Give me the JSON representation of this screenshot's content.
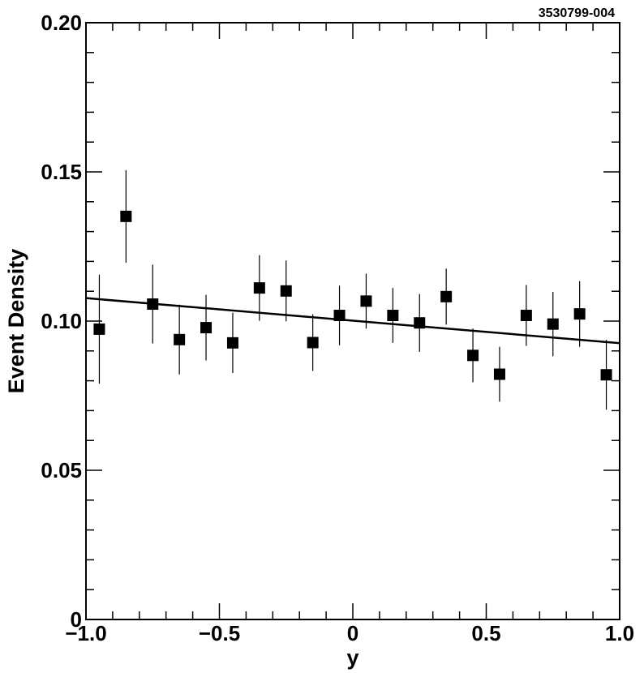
{
  "figure_id": "3530799-004",
  "chart_data": {
    "type": "scatter",
    "xlabel": "y",
    "ylabel": "Event  Density",
    "xlim": [
      -1.0,
      1.0
    ],
    "ylim": [
      0,
      0.2
    ],
    "x_ticks": [
      -1.0,
      -0.5,
      0,
      0.5,
      1.0
    ],
    "x_tick_labels": [
      "−1.0",
      "−0.5",
      "0",
      "0.5",
      "1.0"
    ],
    "y_ticks": [
      0,
      0.05,
      0.1,
      0.15,
      0.2
    ],
    "y_tick_labels": [
      "0",
      "0.05",
      "0.10",
      "0.15",
      "0.20"
    ],
    "grid": false,
    "x_minor_step": 0.1,
    "y_minor_step": 0.01,
    "series": [
      {
        "marker": "square",
        "x": [
          -0.95,
          -0.85,
          -0.75,
          -0.65,
          -0.55,
          -0.45,
          -0.35,
          -0.25,
          -0.15,
          -0.05,
          0.05,
          0.15,
          0.25,
          0.35,
          0.45,
          0.55,
          0.65,
          0.75,
          0.85,
          0.95
        ],
        "y": [
          0.0973,
          0.1351,
          0.1057,
          0.0938,
          0.0978,
          0.0927,
          0.1111,
          0.1101,
          0.0928,
          0.1019,
          0.1067,
          0.1019,
          0.0994,
          0.1082,
          0.0885,
          0.0822,
          0.1019,
          0.099,
          0.1024,
          0.082
        ],
        "y_err": [
          0.0183,
          0.0155,
          0.0132,
          0.0117,
          0.011,
          0.0101,
          0.011,
          0.0102,
          0.0095,
          0.01,
          0.0092,
          0.0092,
          0.0097,
          0.0094,
          0.009,
          0.0092,
          0.0102,
          0.0108,
          0.011,
          0.0117
        ]
      }
    ],
    "fit_line": {
      "x": [
        -1.0,
        1.0
      ],
      "y": [
        0.1077,
        0.0926
      ]
    }
  }
}
